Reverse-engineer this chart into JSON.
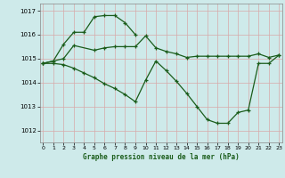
{
  "title": "Graphe pression niveau de la mer (hPa)",
  "bg_color": "#ceeaea",
  "line_color": "#1a5c1a",
  "marker": "+",
  "xlim": [
    -0.3,
    23.3
  ],
  "ylim": [
    1011.5,
    1017.3
  ],
  "yticks": [
    1012,
    1013,
    1014,
    1015,
    1016,
    1017
  ],
  "xticks": [
    0,
    1,
    2,
    3,
    4,
    5,
    6,
    7,
    8,
    9,
    10,
    11,
    12,
    13,
    14,
    15,
    16,
    17,
    18,
    19,
    20,
    21,
    22,
    23
  ],
  "series1_x": [
    0,
    1,
    2,
    3,
    4,
    5,
    6,
    7,
    8,
    9
  ],
  "series1_y": [
    1014.8,
    1014.9,
    1015.6,
    1016.1,
    1016.1,
    1016.75,
    1016.8,
    1016.8,
    1016.5,
    1016.0
  ],
  "series2_x": [
    0,
    2,
    3,
    5,
    6,
    7,
    8,
    9,
    10,
    11,
    12,
    13,
    14,
    15,
    16,
    17,
    18,
    19,
    20,
    21,
    22,
    23
  ],
  "series2_y": [
    1014.8,
    1015.0,
    1015.55,
    1015.35,
    1015.45,
    1015.5,
    1015.5,
    1015.5,
    1015.95,
    1015.45,
    1015.3,
    1015.2,
    1015.05,
    1015.1,
    1015.1,
    1015.1,
    1015.1,
    1015.1,
    1015.1,
    1015.2,
    1015.05,
    1015.15
  ],
  "series3_x": [
    0,
    1,
    2,
    3,
    4,
    5,
    6,
    7,
    8,
    9,
    10,
    11,
    12,
    13,
    14,
    15,
    16,
    17,
    18,
    19,
    20,
    21,
    22,
    23
  ],
  "series3_y": [
    1014.8,
    1014.8,
    1014.75,
    1014.6,
    1014.4,
    1014.2,
    1013.95,
    1013.75,
    1013.5,
    1013.2,
    1014.1,
    1014.9,
    1014.5,
    1014.05,
    1013.55,
    1013.0,
    1012.45,
    1012.3,
    1012.3,
    1012.75,
    1012.85,
    1014.8,
    1014.8,
    1015.15
  ]
}
